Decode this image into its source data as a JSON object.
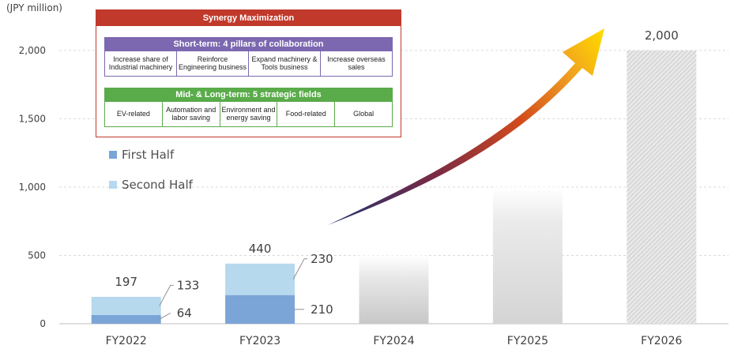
{
  "chart_data": {
    "type": "bar",
    "unit_label": "(JPY million)",
    "categories": [
      "FY2022",
      "FY2023",
      "FY2024",
      "FY2025",
      "FY2026"
    ],
    "yticks": [
      0,
      500,
      1000,
      1500,
      2000
    ],
    "ytick_labels": [
      "0",
      "500",
      "1,000",
      "1,500",
      "2,000"
    ],
    "ylim": [
      0,
      2300
    ],
    "grid": true,
    "series": [
      {
        "name": "First Half",
        "color": "#7aa5d6",
        "values": [
          64,
          210,
          null,
          null,
          null
        ]
      },
      {
        "name": "Second Half",
        "color": "#b6d9ee",
        "values": [
          133,
          230,
          null,
          null,
          null
        ]
      }
    ],
    "projected_values": [
      null,
      null,
      500,
      1000,
      2000
    ],
    "totals": [
      "197",
      "440",
      "",
      "",
      "2,000"
    ],
    "segment_labels": {
      "FY2022": {
        "first": "64",
        "second": "133"
      },
      "FY2023": {
        "first": "210",
        "second": "230"
      }
    }
  },
  "legend": {
    "first": "First Half",
    "second": "Second Half",
    "first_color": "#7aa5d6",
    "second_color": "#b6d9ee"
  },
  "synergy": {
    "title": "Synergy Maximization",
    "short_term": {
      "header": "Short-term: 4 pillars of collaboration",
      "items": [
        "Increase share of Industrial machinery",
        "Reinforce Engineering business",
        "Expand machinery & Tools business",
        "Increase overseas sales"
      ]
    },
    "mid_long_term": {
      "header": "Mid- & Long-term: 5 strategic fields",
      "items": [
        "EV-related",
        "Automation and labor saving",
        "Environment and energy saving",
        "Food-related",
        "Global"
      ]
    }
  }
}
